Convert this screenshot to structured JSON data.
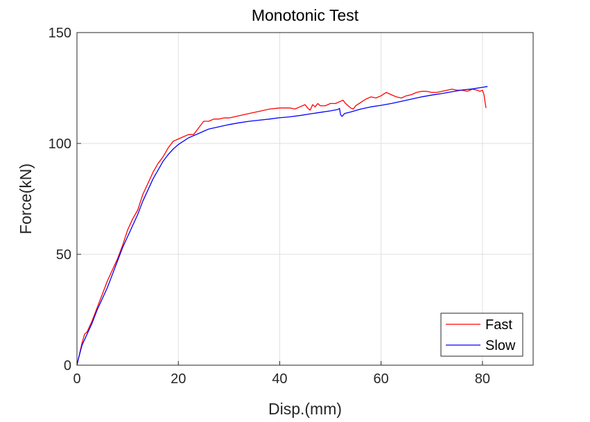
{
  "chart_data": {
    "type": "line",
    "title": "Monotonic Test",
    "xlabel": "Disp.(mm)",
    "ylabel": "Force(kN)",
    "xlim": [
      0,
      90
    ],
    "ylim": [
      0,
      150
    ],
    "xticks": [
      0,
      20,
      40,
      60,
      80
    ],
    "yticks": [
      0,
      50,
      100,
      150
    ],
    "grid": true,
    "legend_position": "bottom-right",
    "series": [
      {
        "name": "Fast",
        "color": "#ff0000",
        "points": [
          [
            0,
            0
          ],
          [
            0.5,
            5
          ],
          [
            1,
            10
          ],
          [
            1.5,
            14
          ],
          [
            2,
            15
          ],
          [
            3,
            20
          ],
          [
            4,
            26
          ],
          [
            5,
            32
          ],
          [
            6,
            38
          ],
          [
            7,
            43
          ],
          [
            8,
            48
          ],
          [
            9,
            54
          ],
          [
            10,
            61
          ],
          [
            11,
            66
          ],
          [
            12,
            70
          ],
          [
            13,
            77
          ],
          [
            14,
            82
          ],
          [
            15,
            87
          ],
          [
            16,
            91
          ],
          [
            17,
            94
          ],
          [
            18,
            98
          ],
          [
            19,
            101
          ],
          [
            20,
            102
          ],
          [
            21,
            103
          ],
          [
            22,
            104
          ],
          [
            23,
            104
          ],
          [
            24,
            107
          ],
          [
            25,
            110
          ],
          [
            26,
            110
          ],
          [
            27,
            111
          ],
          [
            28,
            111
          ],
          [
            29,
            111.5
          ],
          [
            30,
            111.5
          ],
          [
            32,
            112.5
          ],
          [
            34,
            113.5
          ],
          [
            36,
            114.5
          ],
          [
            38,
            115.5
          ],
          [
            40,
            116
          ],
          [
            42,
            116
          ],
          [
            43,
            115.5
          ],
          [
            44,
            116.5
          ],
          [
            45,
            117.5
          ],
          [
            45.5,
            116
          ],
          [
            46,
            115
          ],
          [
            46.5,
            117.5
          ],
          [
            47,
            116.5
          ],
          [
            47.5,
            118
          ],
          [
            48,
            117
          ],
          [
            49,
            117
          ],
          [
            50,
            118
          ],
          [
            51,
            118
          ],
          [
            52,
            119
          ],
          [
            52.5,
            119.5
          ],
          [
            53,
            118
          ],
          [
            54,
            116
          ],
          [
            54.5,
            115.5
          ],
          [
            55,
            117
          ],
          [
            56,
            118.5
          ],
          [
            57,
            120
          ],
          [
            58,
            121
          ],
          [
            59,
            120.5
          ],
          [
            60,
            121.5
          ],
          [
            61,
            123
          ],
          [
            62,
            122
          ],
          [
            63,
            121
          ],
          [
            64,
            120.5
          ],
          [
            65,
            121.5
          ],
          [
            66,
            122
          ],
          [
            67,
            123
          ],
          [
            68,
            123.5
          ],
          [
            69,
            123.5
          ],
          [
            70,
            123
          ],
          [
            71,
            123
          ],
          [
            72,
            123.5
          ],
          [
            73,
            124
          ],
          [
            74,
            124.5
          ],
          [
            75,
            124
          ],
          [
            76,
            124
          ],
          [
            77,
            123.5
          ],
          [
            78,
            124.5
          ],
          [
            79,
            124
          ],
          [
            79.5,
            123.5
          ],
          [
            80,
            124
          ],
          [
            80.3,
            122
          ],
          [
            80.5,
            119
          ],
          [
            80.7,
            116
          ]
        ]
      },
      {
        "name": "Slow",
        "color": "#0000ff",
        "points": [
          [
            0,
            0
          ],
          [
            0.3,
            3
          ],
          [
            1,
            9
          ],
          [
            2,
            14
          ],
          [
            3,
            19
          ],
          [
            4,
            25
          ],
          [
            5,
            30
          ],
          [
            6,
            35
          ],
          [
            7,
            41
          ],
          [
            8,
            47
          ],
          [
            9,
            53
          ],
          [
            10,
            58
          ],
          [
            11,
            63
          ],
          [
            12,
            68
          ],
          [
            13,
            74
          ],
          [
            14,
            79
          ],
          [
            15,
            84
          ],
          [
            16,
            88
          ],
          [
            17,
            92
          ],
          [
            18,
            95
          ],
          [
            19,
            97.5
          ],
          [
            20,
            99.5
          ],
          [
            21,
            101
          ],
          [
            22,
            102.5
          ],
          [
            23,
            103.5
          ],
          [
            24,
            104.5
          ],
          [
            25,
            105.5
          ],
          [
            26,
            106.5
          ],
          [
            28,
            107.5
          ],
          [
            30,
            108.5
          ],
          [
            32,
            109.3
          ],
          [
            34,
            110
          ],
          [
            36,
            110.5
          ],
          [
            38,
            111
          ],
          [
            40,
            111.6
          ],
          [
            42,
            112
          ],
          [
            44,
            112.6
          ],
          [
            46,
            113.3
          ],
          [
            48,
            114
          ],
          [
            50,
            114.7
          ],
          [
            51.5,
            115.3
          ],
          [
            51.8,
            115.8
          ],
          [
            52,
            113
          ],
          [
            52.3,
            112.2
          ],
          [
            52.8,
            113.5
          ],
          [
            54,
            114.2
          ],
          [
            56,
            115.5
          ],
          [
            58,
            116.5
          ],
          [
            60,
            117.2
          ],
          [
            62,
            118
          ],
          [
            64,
            119
          ],
          [
            66,
            120
          ],
          [
            68,
            121
          ],
          [
            70,
            121.8
          ],
          [
            72,
            122.5
          ],
          [
            74,
            123.3
          ],
          [
            76,
            124.1
          ],
          [
            78,
            124.6
          ],
          [
            80,
            125.3
          ],
          [
            81,
            125.7
          ]
        ]
      }
    ]
  }
}
